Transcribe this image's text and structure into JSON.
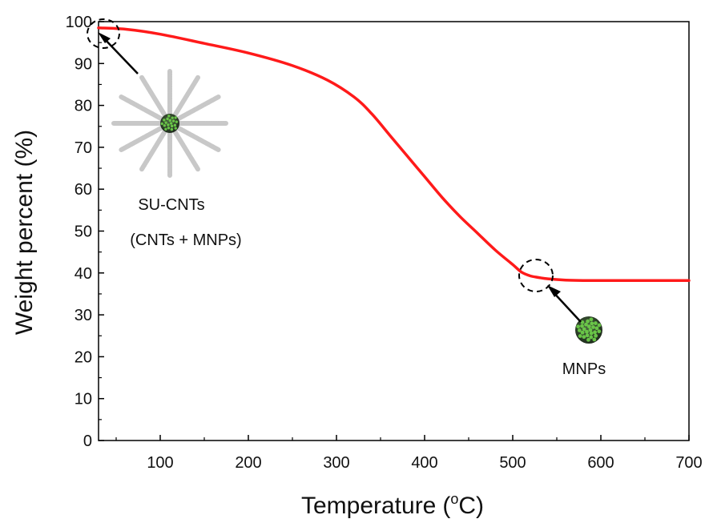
{
  "chart_data": {
    "type": "line",
    "title": "",
    "xlabel": "Temperature",
    "xlabel_unit": "(°C)",
    "ylabel": "Weight percent (%)",
    "xlim": [
      30,
      700
    ],
    "ylim": [
      0,
      100
    ],
    "x_ticks": [
      100,
      200,
      300,
      400,
      500,
      600,
      700
    ],
    "y_ticks": [
      0,
      10,
      20,
      30,
      40,
      50,
      60,
      70,
      80,
      90,
      100
    ],
    "grid": false,
    "legend": "none",
    "series": [
      {
        "color": "#ff1a1a",
        "x": [
          30,
          60,
          100,
          150,
          200,
          250,
          290,
          320,
          340,
          360,
          380,
          400,
          420,
          440,
          460,
          480,
          500,
          510,
          520,
          530,
          540,
          560,
          580,
          600,
          650,
          700
        ],
        "y": [
          98.5,
          98.2,
          97.0,
          94.8,
          92.5,
          89.5,
          86.0,
          82.0,
          78.0,
          73.0,
          68.0,
          63.0,
          58.0,
          53.5,
          49.5,
          45.5,
          42.0,
          40.2,
          39.3,
          38.9,
          38.6,
          38.3,
          38.2,
          38.2,
          38.2,
          38.2
        ]
      }
    ],
    "annotations": [
      {
        "text": "SU-CNTs",
        "target": [
          30,
          98.5
        ]
      },
      {
        "text": "(CNTs + MNPs)"
      },
      {
        "text": "MNPs",
        "target": [
          525,
          39.0
        ]
      }
    ]
  },
  "colors": {
    "curve": "#ff1a1a",
    "axis": "#000000",
    "cnt_tube": "#c8c8c8",
    "mnp_dark": "#2a3a28",
    "mnp_green": "#6fd14a"
  }
}
